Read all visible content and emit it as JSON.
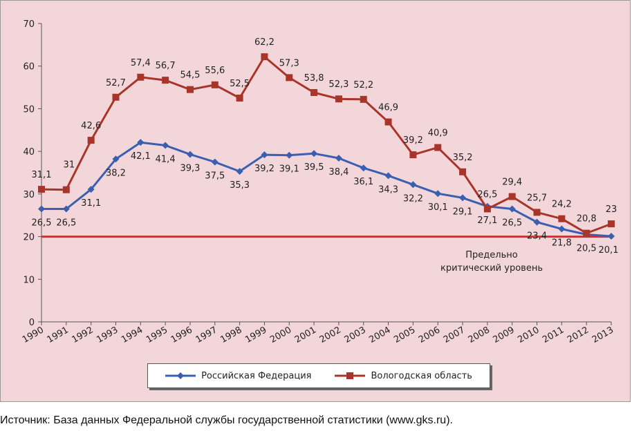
{
  "chart_data": {
    "type": "line",
    "title": "",
    "xlabel": "",
    "ylabel": "",
    "ylim": [
      0,
      70
    ],
    "yticks": [
      0,
      10,
      20,
      30,
      40,
      50,
      60,
      70
    ],
    "ytick_labels": [
      "0",
      "10",
      "20",
      "30",
      "40",
      "50",
      "60",
      "70"
    ],
    "categories": [
      "1990",
      "1991",
      "1992",
      "1993",
      "1994",
      "1995",
      "1996",
      "1997",
      "1998",
      "1999",
      "2000",
      "2001",
      "2002",
      "2003",
      "2004",
      "2005",
      "2006",
      "2007",
      "2008",
      "2009",
      "2010",
      "2011",
      "2012",
      "2013"
    ],
    "grid": false,
    "legend_position": "bottom",
    "series": [
      {
        "name": "Российская Федерация",
        "color": "#3a5fb0",
        "marker": "diamond",
        "values": [
          26.5,
          26.5,
          31.1,
          38.2,
          42.1,
          41.4,
          39.3,
          37.5,
          35.3,
          39.2,
          39.1,
          39.5,
          38.4,
          36.1,
          34.3,
          32.2,
          30.1,
          29.1,
          27.1,
          26.5,
          23.4,
          21.8,
          20.5,
          20.1
        ],
        "labels": [
          "26,5",
          "26,5",
          "31,1",
          "38,2",
          "42,1",
          "41,4",
          "39,3",
          "37,5",
          "35,3",
          "39,2",
          "39,1",
          "39,5",
          "38,4",
          "36,1",
          "34,3",
          "32,2",
          "30,1",
          "29,1",
          "27,1",
          "26,5",
          "23,4",
          "21,8",
          "20,5",
          "20,1"
        ]
      },
      {
        "name": "Вологодская область",
        "color": "#a8342a",
        "marker": "square",
        "values": [
          31.1,
          31,
          42.6,
          52.7,
          57.4,
          56.7,
          54.5,
          55.6,
          52.5,
          62.2,
          57.3,
          53.8,
          52.3,
          52.2,
          46.9,
          39.2,
          40.9,
          35.2,
          26.5,
          29.4,
          25.7,
          24.2,
          20.8,
          23
        ],
        "labels": [
          "31,1",
          "31",
          "42,6",
          "52,7",
          "57,4",
          "56,7",
          "54,5",
          "55,6",
          "52,5",
          "62,2",
          "57,3",
          "53,8",
          "52,3",
          "52,2",
          "46,9",
          "39,2",
          "40,9",
          "35,2",
          "26,5",
          "29,4",
          "25,7",
          "24,2",
          "20,8",
          "23"
        ]
      }
    ],
    "reference_line": {
      "value": 20,
      "color": "#e8262a",
      "label_line1": "Предельно",
      "label_line2": "критический уровень"
    }
  },
  "source_note": "Источник: База данных Федеральной службы государственной статистики (www.gks.ru)."
}
